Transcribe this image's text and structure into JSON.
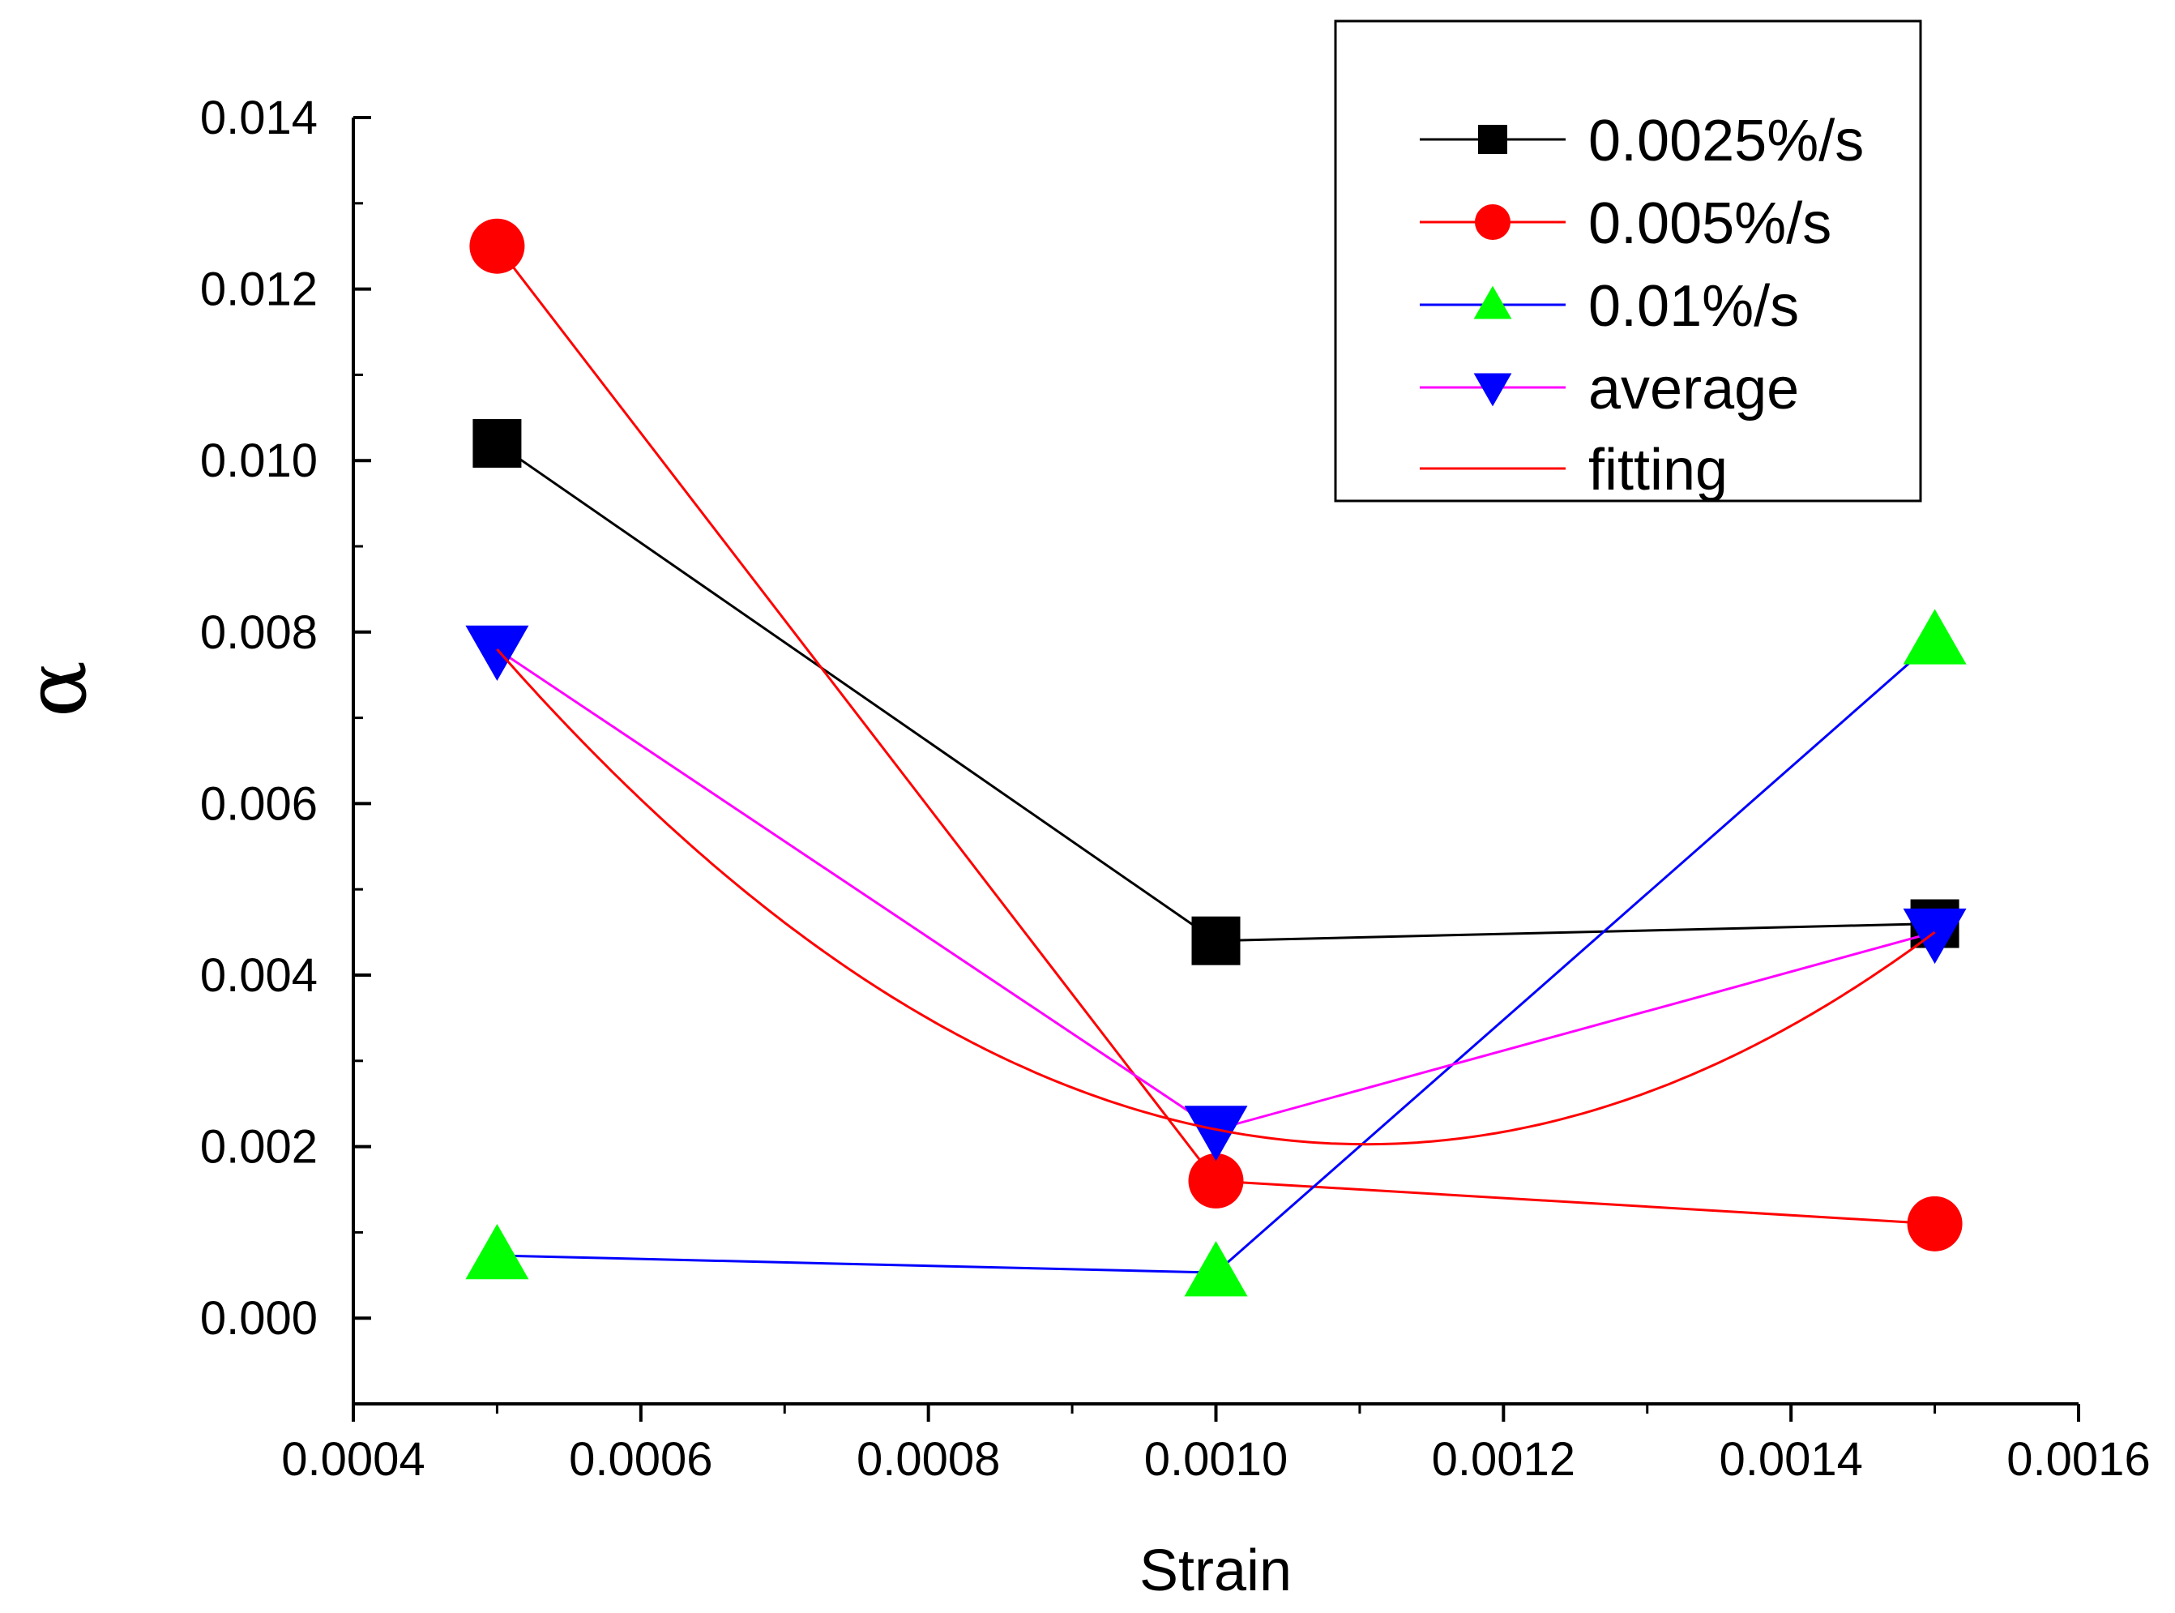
{
  "chart_data": {
    "type": "line",
    "title": "",
    "xlabel": "Strain",
    "ylabel": "α",
    "xlim": [
      0.0004,
      0.0016
    ],
    "ylim": [
      -0.001,
      0.014
    ],
    "x_ticks": [
      "0.0004",
      "0.0006",
      "0.0008",
      "0.0010",
      "0.0012",
      "0.0014",
      "0.0016"
    ],
    "y_ticks": [
      "0.000",
      "0.002",
      "0.004",
      "0.006",
      "0.008",
      "0.010",
      "0.012",
      "0.014"
    ],
    "grid": false,
    "legend_position": "top-right",
    "x": [
      0.0005,
      0.001,
      0.0015
    ],
    "series": [
      {
        "name": "0.0025%/s",
        "values": [
          0.0102,
          0.0044,
          0.0046
        ],
        "color": "#000000",
        "marker": "square"
      },
      {
        "name": "0.005%/s",
        "values": [
          0.0125,
          0.0016,
          0.0011
        ],
        "color": "#ff0000",
        "marker": "circle"
      },
      {
        "name": "0.01%/s",
        "values": [
          0.00073,
          0.00053,
          0.0079
        ],
        "color": "#0000ff",
        "marker_color": "#00ff00",
        "marker": "triangle-up"
      },
      {
        "name": "average",
        "values": [
          0.0078,
          0.0022,
          0.0045
        ],
        "color": "#ff00ff",
        "marker_color": "#0000ff",
        "marker": "triangle-down"
      },
      {
        "name": "fitting",
        "values": [
          0.0078,
          0.0022,
          0.0045
        ],
        "color": "#ff0000",
        "marker": "none",
        "curve": "quadratic"
      }
    ]
  }
}
